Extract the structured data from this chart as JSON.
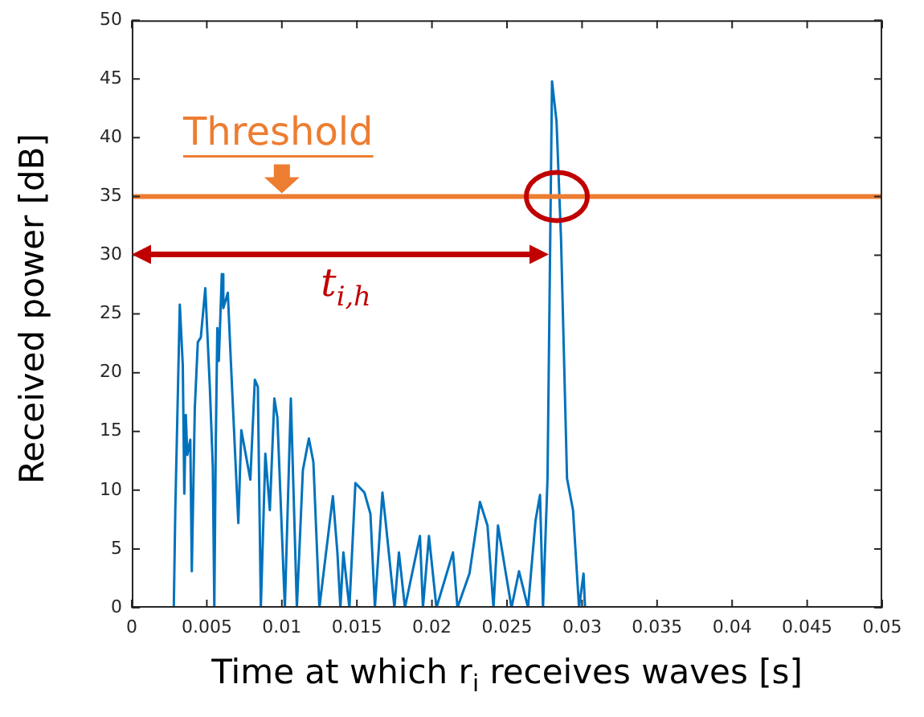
{
  "chart_data": {
    "type": "line",
    "xlabel": "Time at which r$_{i}$ receives waves [s]",
    "ylabel": "Received power [dB]",
    "x": [
      0.0028,
      0.0029,
      0.0032,
      0.0034,
      0.0035,
      0.0036,
      0.0037,
      0.0039,
      0.004,
      0.0042,
      0.0044,
      0.0046,
      0.0049,
      0.0052,
      0.0054,
      0.0055,
      0.0056,
      0.0057,
      0.0058,
      0.006,
      0.0061,
      0.0064,
      0.0066,
      0.0071,
      0.0073,
      0.0076,
      0.0079,
      0.0082,
      0.0084,
      0.0086,
      0.0089,
      0.0092,
      0.0095,
      0.0097,
      0.0102,
      0.0106,
      0.011,
      0.0114,
      0.0118,
      0.0121,
      0.0125,
      0.0134,
      0.0137,
      0.0139,
      0.0141,
      0.0145,
      0.0149,
      0.0155,
      0.0159,
      0.0162,
      0.0167,
      0.0169,
      0.0175,
      0.0178,
      0.0182,
      0.0192,
      0.0194,
      0.0198,
      0.0203,
      0.0214,
      0.0217,
      0.0225,
      0.0232,
      0.0237,
      0.0241,
      0.0244,
      0.0249,
      0.0253,
      0.0258,
      0.0264,
      0.0269,
      0.0272,
      0.0274,
      0.0277,
      0.028,
      0.0283,
      0.0286,
      0.029,
      0.0294,
      0.0298,
      0.0301,
      0.0302
    ],
    "series": [
      {
        "color": "#0072bd",
        "values": [
          0,
          8.3,
          25.8,
          20.6,
          9.7,
          16.4,
          13,
          14.3,
          3.1,
          17,
          22.6,
          23,
          27.2,
          18.8,
          12,
          0,
          14.3,
          23.8,
          21,
          28.4,
          25.5,
          26.8,
          21,
          7.2,
          15.1,
          13,
          10.9,
          19.4,
          18.8,
          0,
          13.1,
          8.3,
          17.8,
          16.2,
          0,
          17.8,
          0,
          11.7,
          14.4,
          12.4,
          0,
          9.5,
          4.7,
          0,
          4.7,
          0,
          10.6,
          9.8,
          8.0,
          0,
          9.8,
          7.5,
          0,
          4.7,
          0,
          6.1,
          0,
          6.1,
          0,
          4.7,
          0,
          2.9,
          9.0,
          7.0,
          0,
          7,
          3.1,
          0,
          3.1,
          0,
          7.4,
          9.6,
          0,
          11,
          44.8,
          41.4,
          31.4,
          11,
          8.3,
          0,
          2.9,
          0
        ]
      }
    ],
    "xlim": [
      0,
      0.05
    ],
    "xticks": [
      0,
      0.005,
      0.01,
      0.015,
      0.02,
      0.025,
      0.03,
      0.035,
      0.04,
      0.045,
      0.05
    ],
    "ylim": [
      0,
      50
    ],
    "yticks": [
      0,
      5,
      10,
      15,
      20,
      25,
      30,
      35,
      40,
      45,
      50
    ],
    "ref_lines": [
      {
        "axis": "y",
        "value": 35,
        "label": "Threshold",
        "color": "#ed7d31"
      }
    ],
    "annotations": [
      "t$_{i,h}$"
    ]
  }
}
